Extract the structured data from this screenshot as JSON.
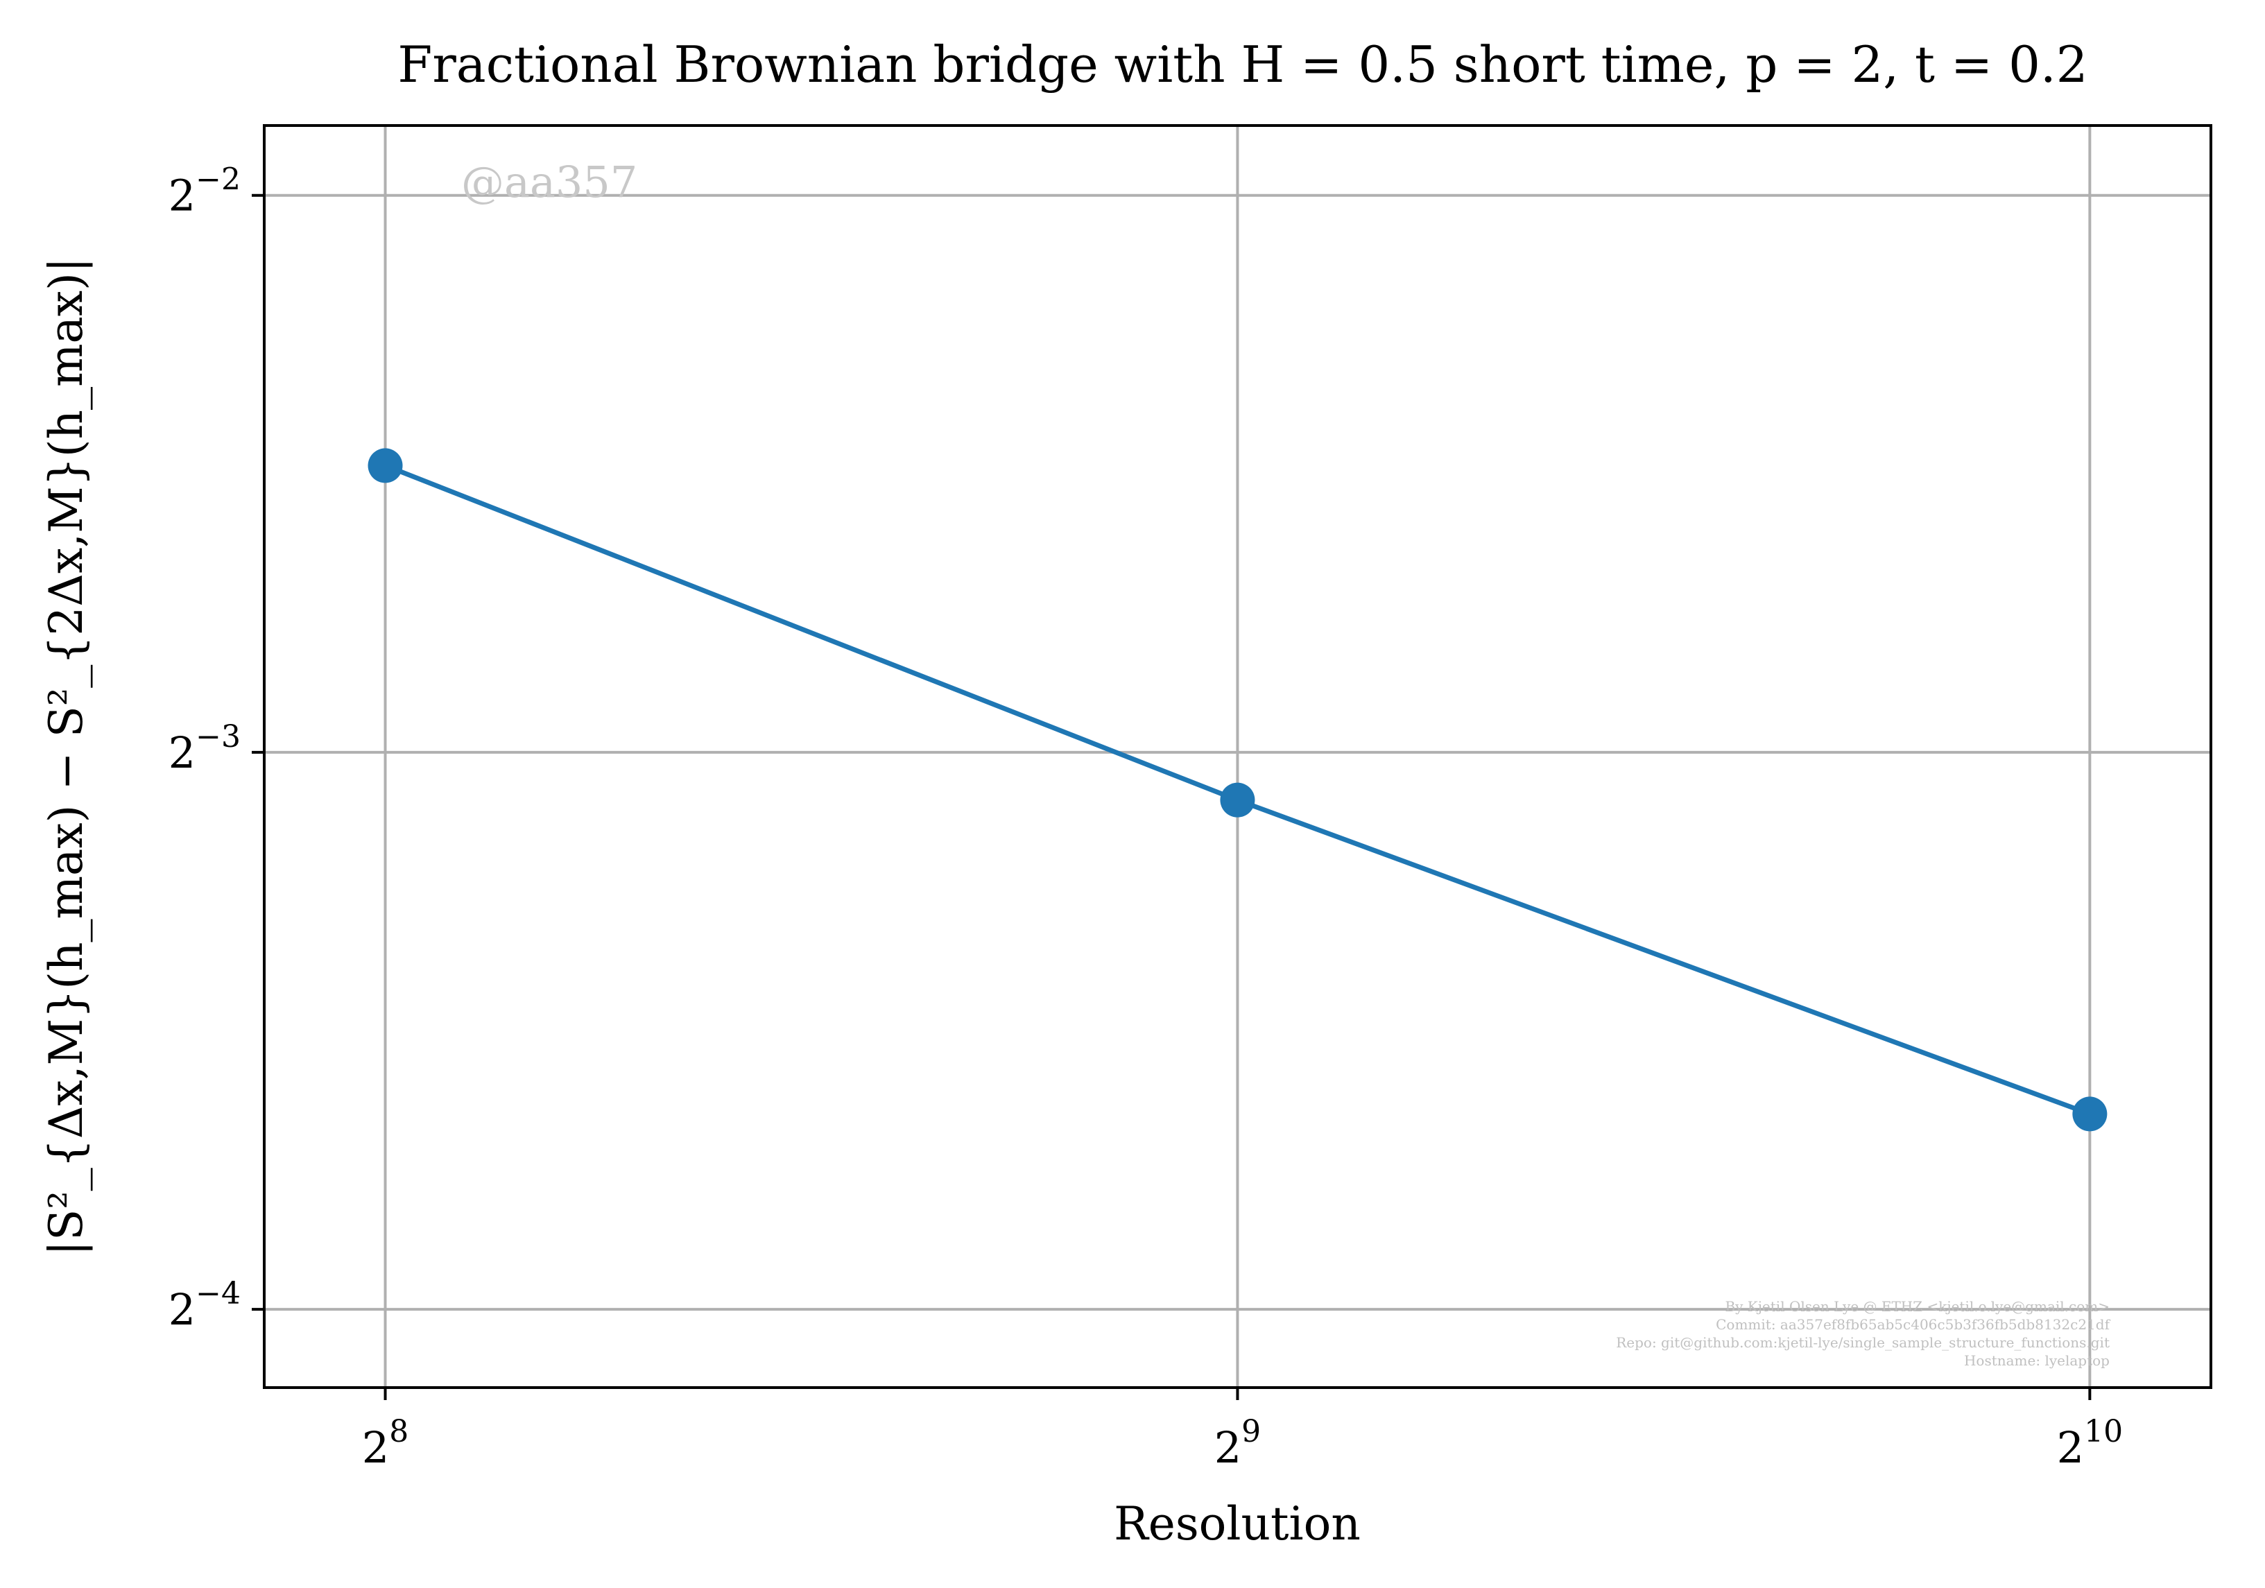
{
  "chart_data": {
    "type": "line",
    "title": "Fractional Brownian bridge with H = 0.5 short time, p = 2, t = 0.2",
    "xlabel": "Resolution",
    "ylabel": "|S²_{Δx,M}(h_max) − S²_{2Δx,M}(h_max)|",
    "xscale": "log2",
    "yscale": "log2",
    "grid": true,
    "x_ticks": [
      {
        "base": "2",
        "exp": "8",
        "value": 256
      },
      {
        "base": "2",
        "exp": "9",
        "value": 512
      },
      {
        "base": "2",
        "exp": "10",
        "value": 1024
      }
    ],
    "y_ticks": [
      {
        "base": "2",
        "exp": "−2",
        "value": 0.25
      },
      {
        "base": "2",
        "exp": "−3",
        "value": 0.125
      },
      {
        "base": "2",
        "exp": "−4",
        "value": 0.0625
      }
    ],
    "xlim": [
      232,
      1130
    ],
    "ylim": [
      0.0567,
      0.2727
    ],
    "color": "#1f77b4",
    "series": [
      {
        "x": [
          256,
          512,
          1024
        ],
        "y": [
          0.1786,
          0.1178,
          0.0797
        ]
      }
    ],
    "watermark": "@aa357",
    "footer_lines": [
      "By Kjetil Olsen Lye @ ETHZ <kjetil.o.lye@gmail.com>",
      "Commit: aa357ef8fb65ab5c406c5b3f36fb5db8132c21df",
      "Repo: git@github.com:kjetil-lye/single_sample_structure_functions.git",
      "Hostname: lyelaptop"
    ]
  }
}
